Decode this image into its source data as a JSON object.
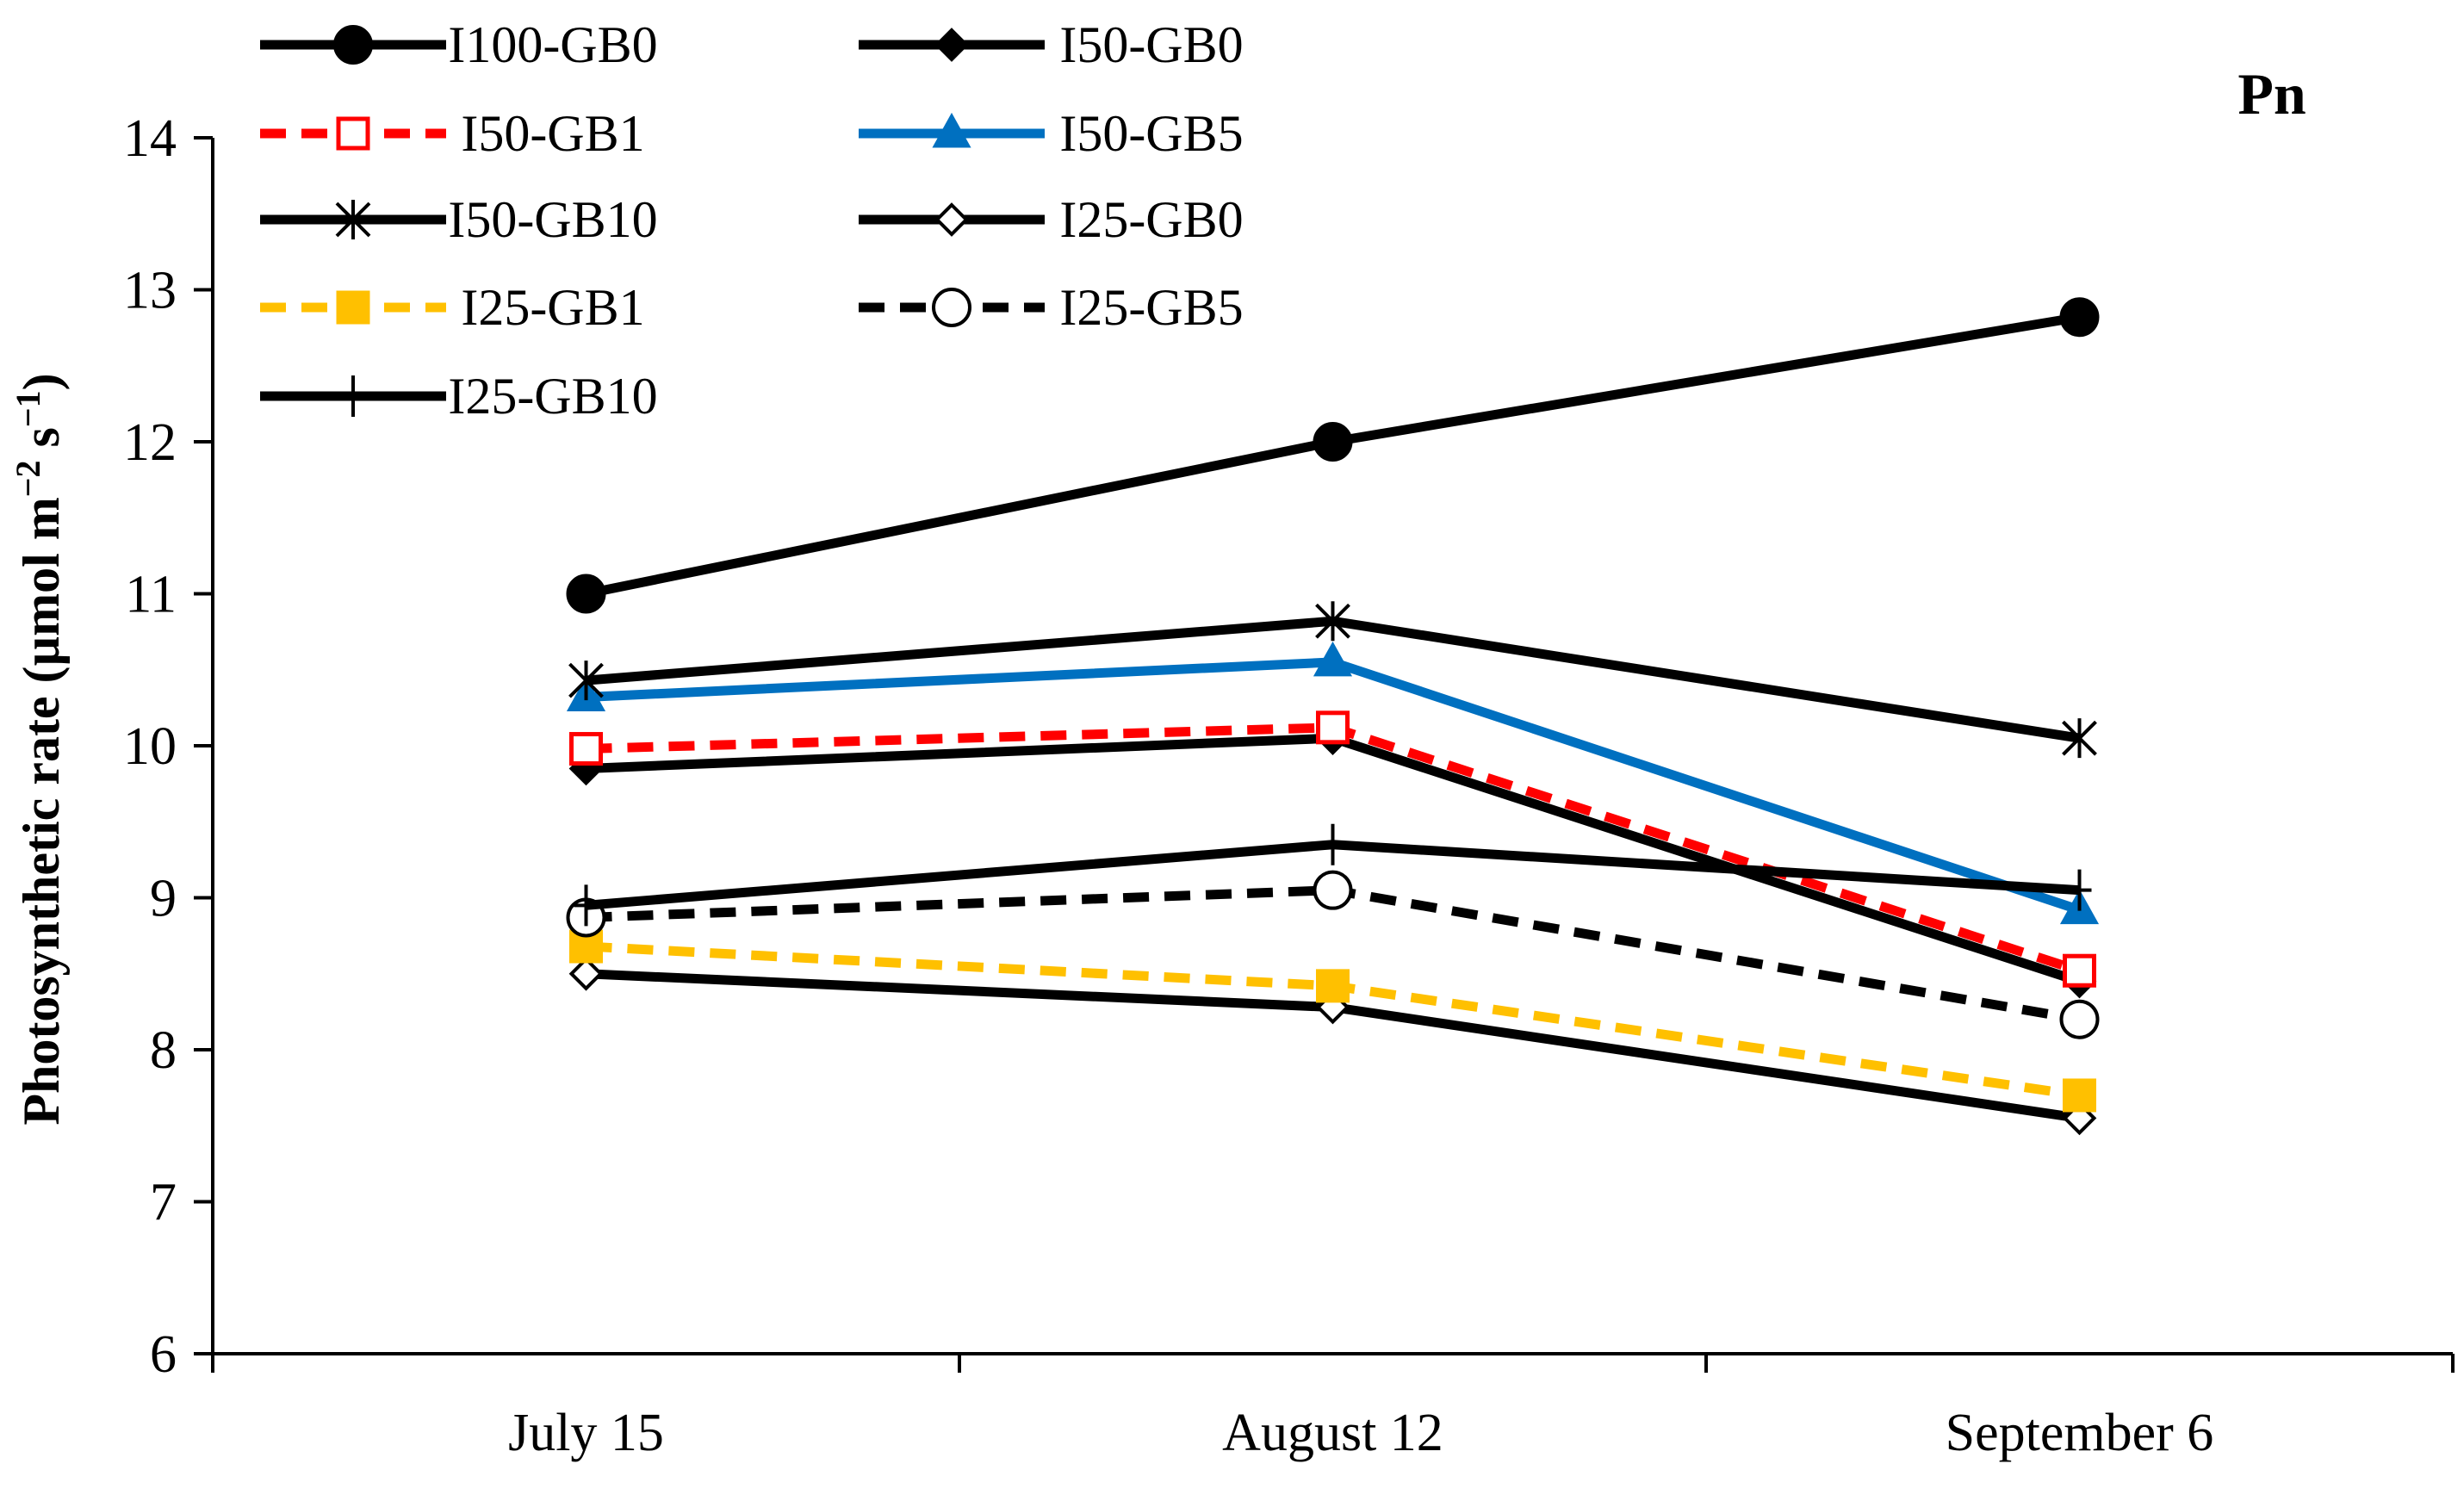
{
  "chart_data": {
    "type": "line",
    "panel_label": "Pn",
    "ylabel_main": "Photosynthetic rate (µmol m",
    "ylabel_exp1": "−2",
    "ylabel_mid": " s",
    "ylabel_exp2": "−1",
    "ylabel_end": ")",
    "xlabel": "",
    "categories": [
      "July 15",
      "August 12",
      "September 6"
    ],
    "ylim": [
      6,
      14
    ],
    "yticks": [
      6,
      7,
      8,
      9,
      10,
      11,
      12,
      13,
      14
    ],
    "series": [
      {
        "name": "I100-GB0",
        "values": [
          11.0,
          12.0,
          12.82
        ],
        "color": "#000000",
        "dashed": false,
        "marker": "circle",
        "filled": true
      },
      {
        "name": "I50-GB0",
        "values": [
          9.85,
          10.05,
          8.45
        ],
        "color": "#000000",
        "dashed": false,
        "marker": "diamond",
        "filled": true
      },
      {
        "name": "I50-GB1",
        "values": [
          9.98,
          10.12,
          8.52
        ],
        "color": "#ff0000",
        "dashed": true,
        "marker": "square",
        "filled": false
      },
      {
        "name": "I50-GB5",
        "values": [
          10.32,
          10.55,
          8.92
        ],
        "color": "#0070c0",
        "dashed": false,
        "marker": "triangle",
        "filled": true
      },
      {
        "name": "I50-GB10",
        "values": [
          10.43,
          10.82,
          10.05
        ],
        "color": "#000000",
        "dashed": false,
        "marker": "star",
        "filled": false
      },
      {
        "name": "I25-GB0",
        "values": [
          8.5,
          8.28,
          7.55
        ],
        "color": "#000000",
        "dashed": false,
        "marker": "diamond",
        "filled": false
      },
      {
        "name": "I25-GB1",
        "values": [
          8.68,
          8.42,
          7.7
        ],
        "color": "#ffc000",
        "dashed": true,
        "marker": "square",
        "filled": true
      },
      {
        "name": "I25-GB5",
        "values": [
          8.87,
          9.05,
          8.2
        ],
        "color": "#000000",
        "dashed": true,
        "marker": "circle",
        "filled": false
      },
      {
        "name": "I25-GB10",
        "values": [
          8.95,
          9.35,
          9.05
        ],
        "color": "#000000",
        "dashed": false,
        "marker": "plus",
        "filled": false
      }
    ],
    "grid": false,
    "legend_position": "top-left"
  }
}
